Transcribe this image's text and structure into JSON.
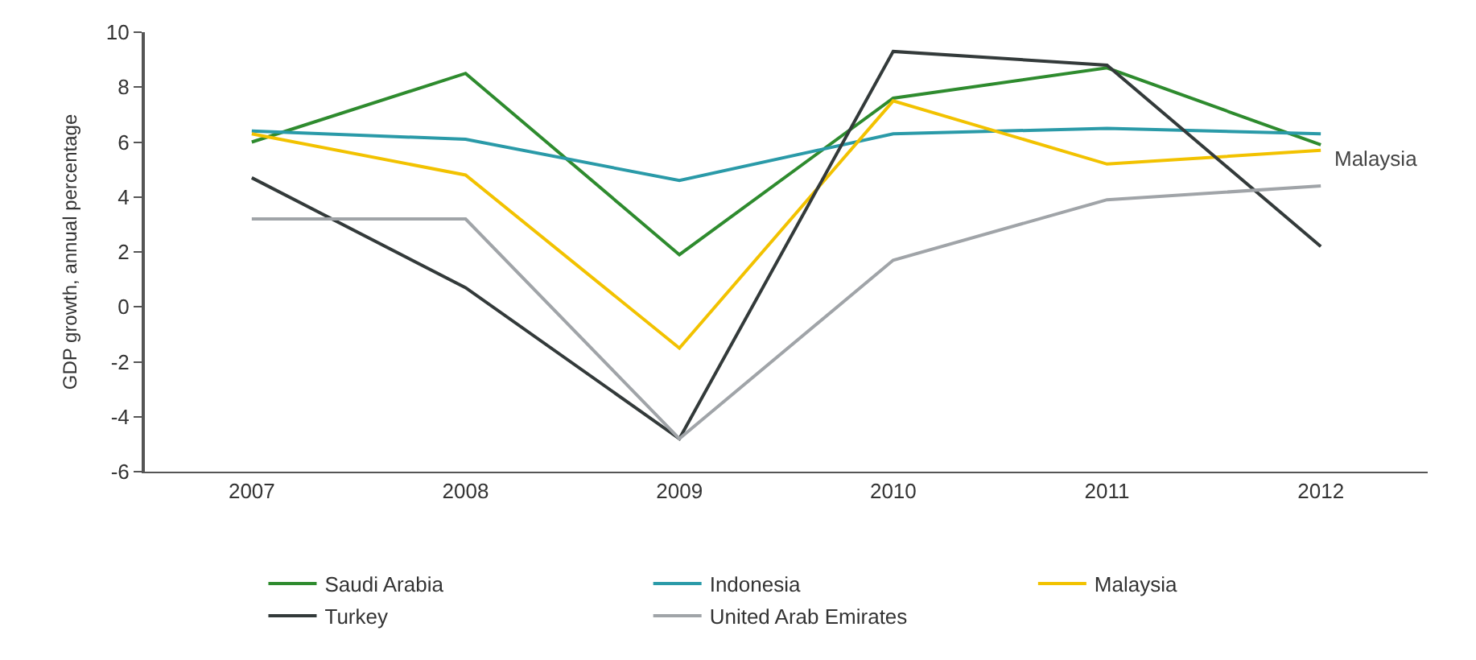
{
  "chart_data": {
    "type": "line",
    "ylabel": "GDP growth, annual percentage",
    "categories": [
      "2007",
      "2008",
      "2009",
      "2010",
      "2011",
      "2012"
    ],
    "series": [
      {
        "name": "Saudi Arabia",
        "color": "#2e8b2e",
        "values": [
          6.0,
          8.5,
          1.9,
          7.6,
          8.7,
          5.9
        ]
      },
      {
        "name": "Indonesia",
        "color": "#2a9aa8",
        "values": [
          6.4,
          6.1,
          4.6,
          6.3,
          6.5,
          6.3
        ]
      },
      {
        "name": "Malaysia",
        "color": "#f2c200",
        "values": [
          6.3,
          4.8,
          -1.5,
          7.5,
          5.2,
          5.7
        ]
      },
      {
        "name": "Turkey",
        "color": "#333a3a",
        "values": [
          4.7,
          0.7,
          -4.8,
          9.3,
          8.8,
          2.2
        ]
      },
      {
        "name": "United Arab Emirates",
        "color": "#a0a4a8",
        "values": [
          3.2,
          3.2,
          -4.8,
          1.7,
          3.9,
          4.4
        ]
      }
    ],
    "annotations": [
      {
        "text": "Malaysia",
        "x": "2012",
        "y": 5.7
      }
    ],
    "ylim": [
      -6,
      10
    ],
    "yticks": [
      -6,
      -4,
      -2,
      0,
      2,
      4,
      6,
      8,
      10
    ],
    "legend": "bottom",
    "marker": "none",
    "line_style": "solid"
  }
}
